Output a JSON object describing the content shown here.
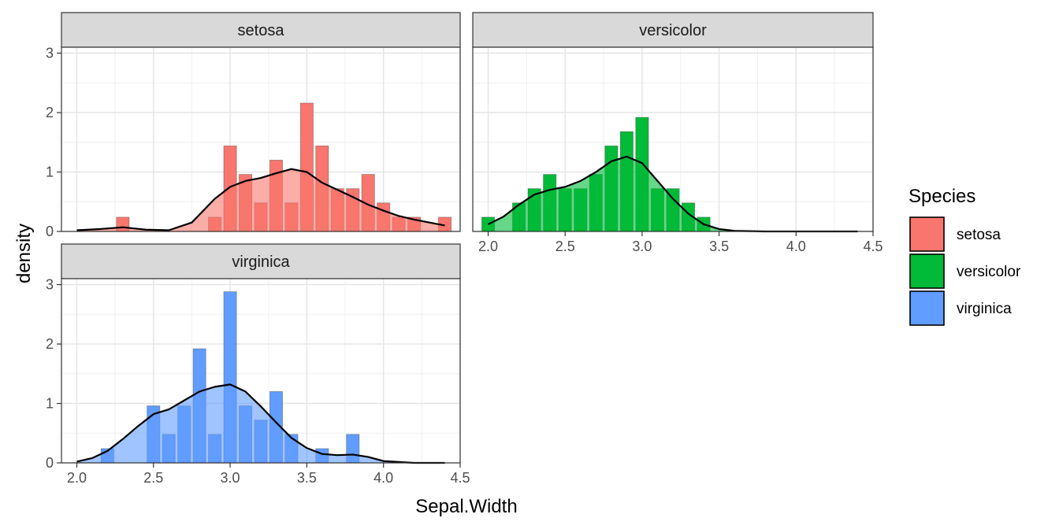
{
  "chart_data": {
    "type": "histogram",
    "facet_by": "Species",
    "xlabel": "Sepal.Width",
    "ylabel": "density",
    "x_ticks": [
      2.0,
      2.5,
      3.0,
      3.5,
      4.0,
      4.5
    ],
    "x_tick_labels": [
      "2.0",
      "2.5",
      "3.0",
      "3.5",
      "4.0",
      "4.5"
    ],
    "y_ticks": [
      0,
      1,
      2,
      3
    ],
    "y_tick_labels": [
      "0",
      "1",
      "2",
      "3"
    ],
    "xlim": [
      1.9,
      4.5
    ],
    "ylim": [
      0,
      3.1
    ],
    "bin_width": 0.0833,
    "grid": true,
    "legend": {
      "title": "Species",
      "position": "right",
      "entries": [
        {
          "label": "setosa",
          "color": "#F8766D"
        },
        {
          "label": "versicolor",
          "color": "#00BA38"
        },
        {
          "label": "virginica",
          "color": "#619CFF"
        }
      ]
    },
    "panels": [
      {
        "name": "setosa",
        "color": "#F8766D",
        "bins": [
          {
            "x": 2.3,
            "density": 0.24
          },
          {
            "x": 2.9,
            "density": 0.24
          },
          {
            "x": 3.0,
            "density": 1.44
          },
          {
            "x": 3.1,
            "density": 0.96
          },
          {
            "x": 3.2,
            "density": 0.48
          },
          {
            "x": 3.3,
            "density": 1.2
          },
          {
            "x": 3.4,
            "density": 0.48
          },
          {
            "x": 3.5,
            "density": 2.16
          },
          {
            "x": 3.6,
            "density": 1.44
          },
          {
            "x": 3.7,
            "density": 0.72
          },
          {
            "x": 3.8,
            "density": 0.72
          },
          {
            "x": 3.9,
            "density": 0.96
          },
          {
            "x": 4.0,
            "density": 0.48
          },
          {
            "x": 4.1,
            "density": 0.24
          },
          {
            "x": 4.2,
            "density": 0.24
          },
          {
            "x": 4.4,
            "density": 0.24
          }
        ],
        "density_curve": [
          [
            2.0,
            0.02
          ],
          [
            2.15,
            0.04
          ],
          [
            2.3,
            0.07
          ],
          [
            2.45,
            0.03
          ],
          [
            2.6,
            0.02
          ],
          [
            2.75,
            0.15
          ],
          [
            2.9,
            0.55
          ],
          [
            3.0,
            0.75
          ],
          [
            3.1,
            0.85
          ],
          [
            3.2,
            0.9
          ],
          [
            3.3,
            0.98
          ],
          [
            3.4,
            1.05
          ],
          [
            3.5,
            1.0
          ],
          [
            3.6,
            0.82
          ],
          [
            3.7,
            0.7
          ],
          [
            3.8,
            0.58
          ],
          [
            3.9,
            0.45
          ],
          [
            4.0,
            0.35
          ],
          [
            4.1,
            0.26
          ],
          [
            4.2,
            0.2
          ],
          [
            4.3,
            0.15
          ],
          [
            4.4,
            0.1
          ]
        ]
      },
      {
        "name": "versicolor",
        "color": "#00BA38",
        "bins": [
          {
            "x": 2.0,
            "density": 0.24
          },
          {
            "x": 2.2,
            "density": 0.48
          },
          {
            "x": 2.3,
            "density": 0.72
          },
          {
            "x": 2.4,
            "density": 0.96
          },
          {
            "x": 2.5,
            "density": 0.72
          },
          {
            "x": 2.6,
            "density": 0.72
          },
          {
            "x": 2.7,
            "density": 0.96
          },
          {
            "x": 2.8,
            "density": 1.44
          },
          {
            "x": 2.9,
            "density": 1.68
          },
          {
            "x": 3.0,
            "density": 1.92
          },
          {
            "x": 3.1,
            "density": 0.72
          },
          {
            "x": 3.2,
            "density": 0.72
          },
          {
            "x": 3.3,
            "density": 0.48
          },
          {
            "x": 3.4,
            "density": 0.24
          }
        ],
        "density_curve": [
          [
            2.0,
            0.12
          ],
          [
            2.1,
            0.25
          ],
          [
            2.2,
            0.45
          ],
          [
            2.3,
            0.62
          ],
          [
            2.4,
            0.7
          ],
          [
            2.5,
            0.75
          ],
          [
            2.6,
            0.85
          ],
          [
            2.7,
            1.0
          ],
          [
            2.8,
            1.18
          ],
          [
            2.9,
            1.26
          ],
          [
            3.0,
            1.15
          ],
          [
            3.1,
            0.85
          ],
          [
            3.2,
            0.55
          ],
          [
            3.3,
            0.3
          ],
          [
            3.4,
            0.12
          ],
          [
            3.5,
            0.04
          ],
          [
            3.6,
            0.01
          ],
          [
            3.8,
            0.0
          ],
          [
            4.0,
            0.0
          ],
          [
            4.4,
            0.0
          ]
        ]
      },
      {
        "name": "virginica",
        "color": "#619CFF",
        "bins": [
          {
            "x": 2.2,
            "density": 0.24
          },
          {
            "x": 2.5,
            "density": 0.96
          },
          {
            "x": 2.6,
            "density": 0.48
          },
          {
            "x": 2.7,
            "density": 0.96
          },
          {
            "x": 2.8,
            "density": 1.92
          },
          {
            "x": 2.9,
            "density": 0.48
          },
          {
            "x": 3.0,
            "density": 2.88
          },
          {
            "x": 3.1,
            "density": 0.96
          },
          {
            "x": 3.2,
            "density": 0.72
          },
          {
            "x": 3.3,
            "density": 1.2
          },
          {
            "x": 3.4,
            "density": 0.48
          },
          {
            "x": 3.6,
            "density": 0.24
          },
          {
            "x": 3.8,
            "density": 0.48
          }
        ],
        "density_curve": [
          [
            2.0,
            0.02
          ],
          [
            2.1,
            0.08
          ],
          [
            2.2,
            0.2
          ],
          [
            2.3,
            0.4
          ],
          [
            2.4,
            0.62
          ],
          [
            2.5,
            0.82
          ],
          [
            2.6,
            0.9
          ],
          [
            2.7,
            1.05
          ],
          [
            2.8,
            1.2
          ],
          [
            2.9,
            1.28
          ],
          [
            3.0,
            1.32
          ],
          [
            3.1,
            1.2
          ],
          [
            3.2,
            0.95
          ],
          [
            3.3,
            0.68
          ],
          [
            3.4,
            0.42
          ],
          [
            3.5,
            0.25
          ],
          [
            3.6,
            0.15
          ],
          [
            3.7,
            0.13
          ],
          [
            3.8,
            0.14
          ],
          [
            3.9,
            0.1
          ],
          [
            4.0,
            0.03
          ],
          [
            4.2,
            0.0
          ],
          [
            4.4,
            0.0
          ]
        ]
      }
    ]
  }
}
